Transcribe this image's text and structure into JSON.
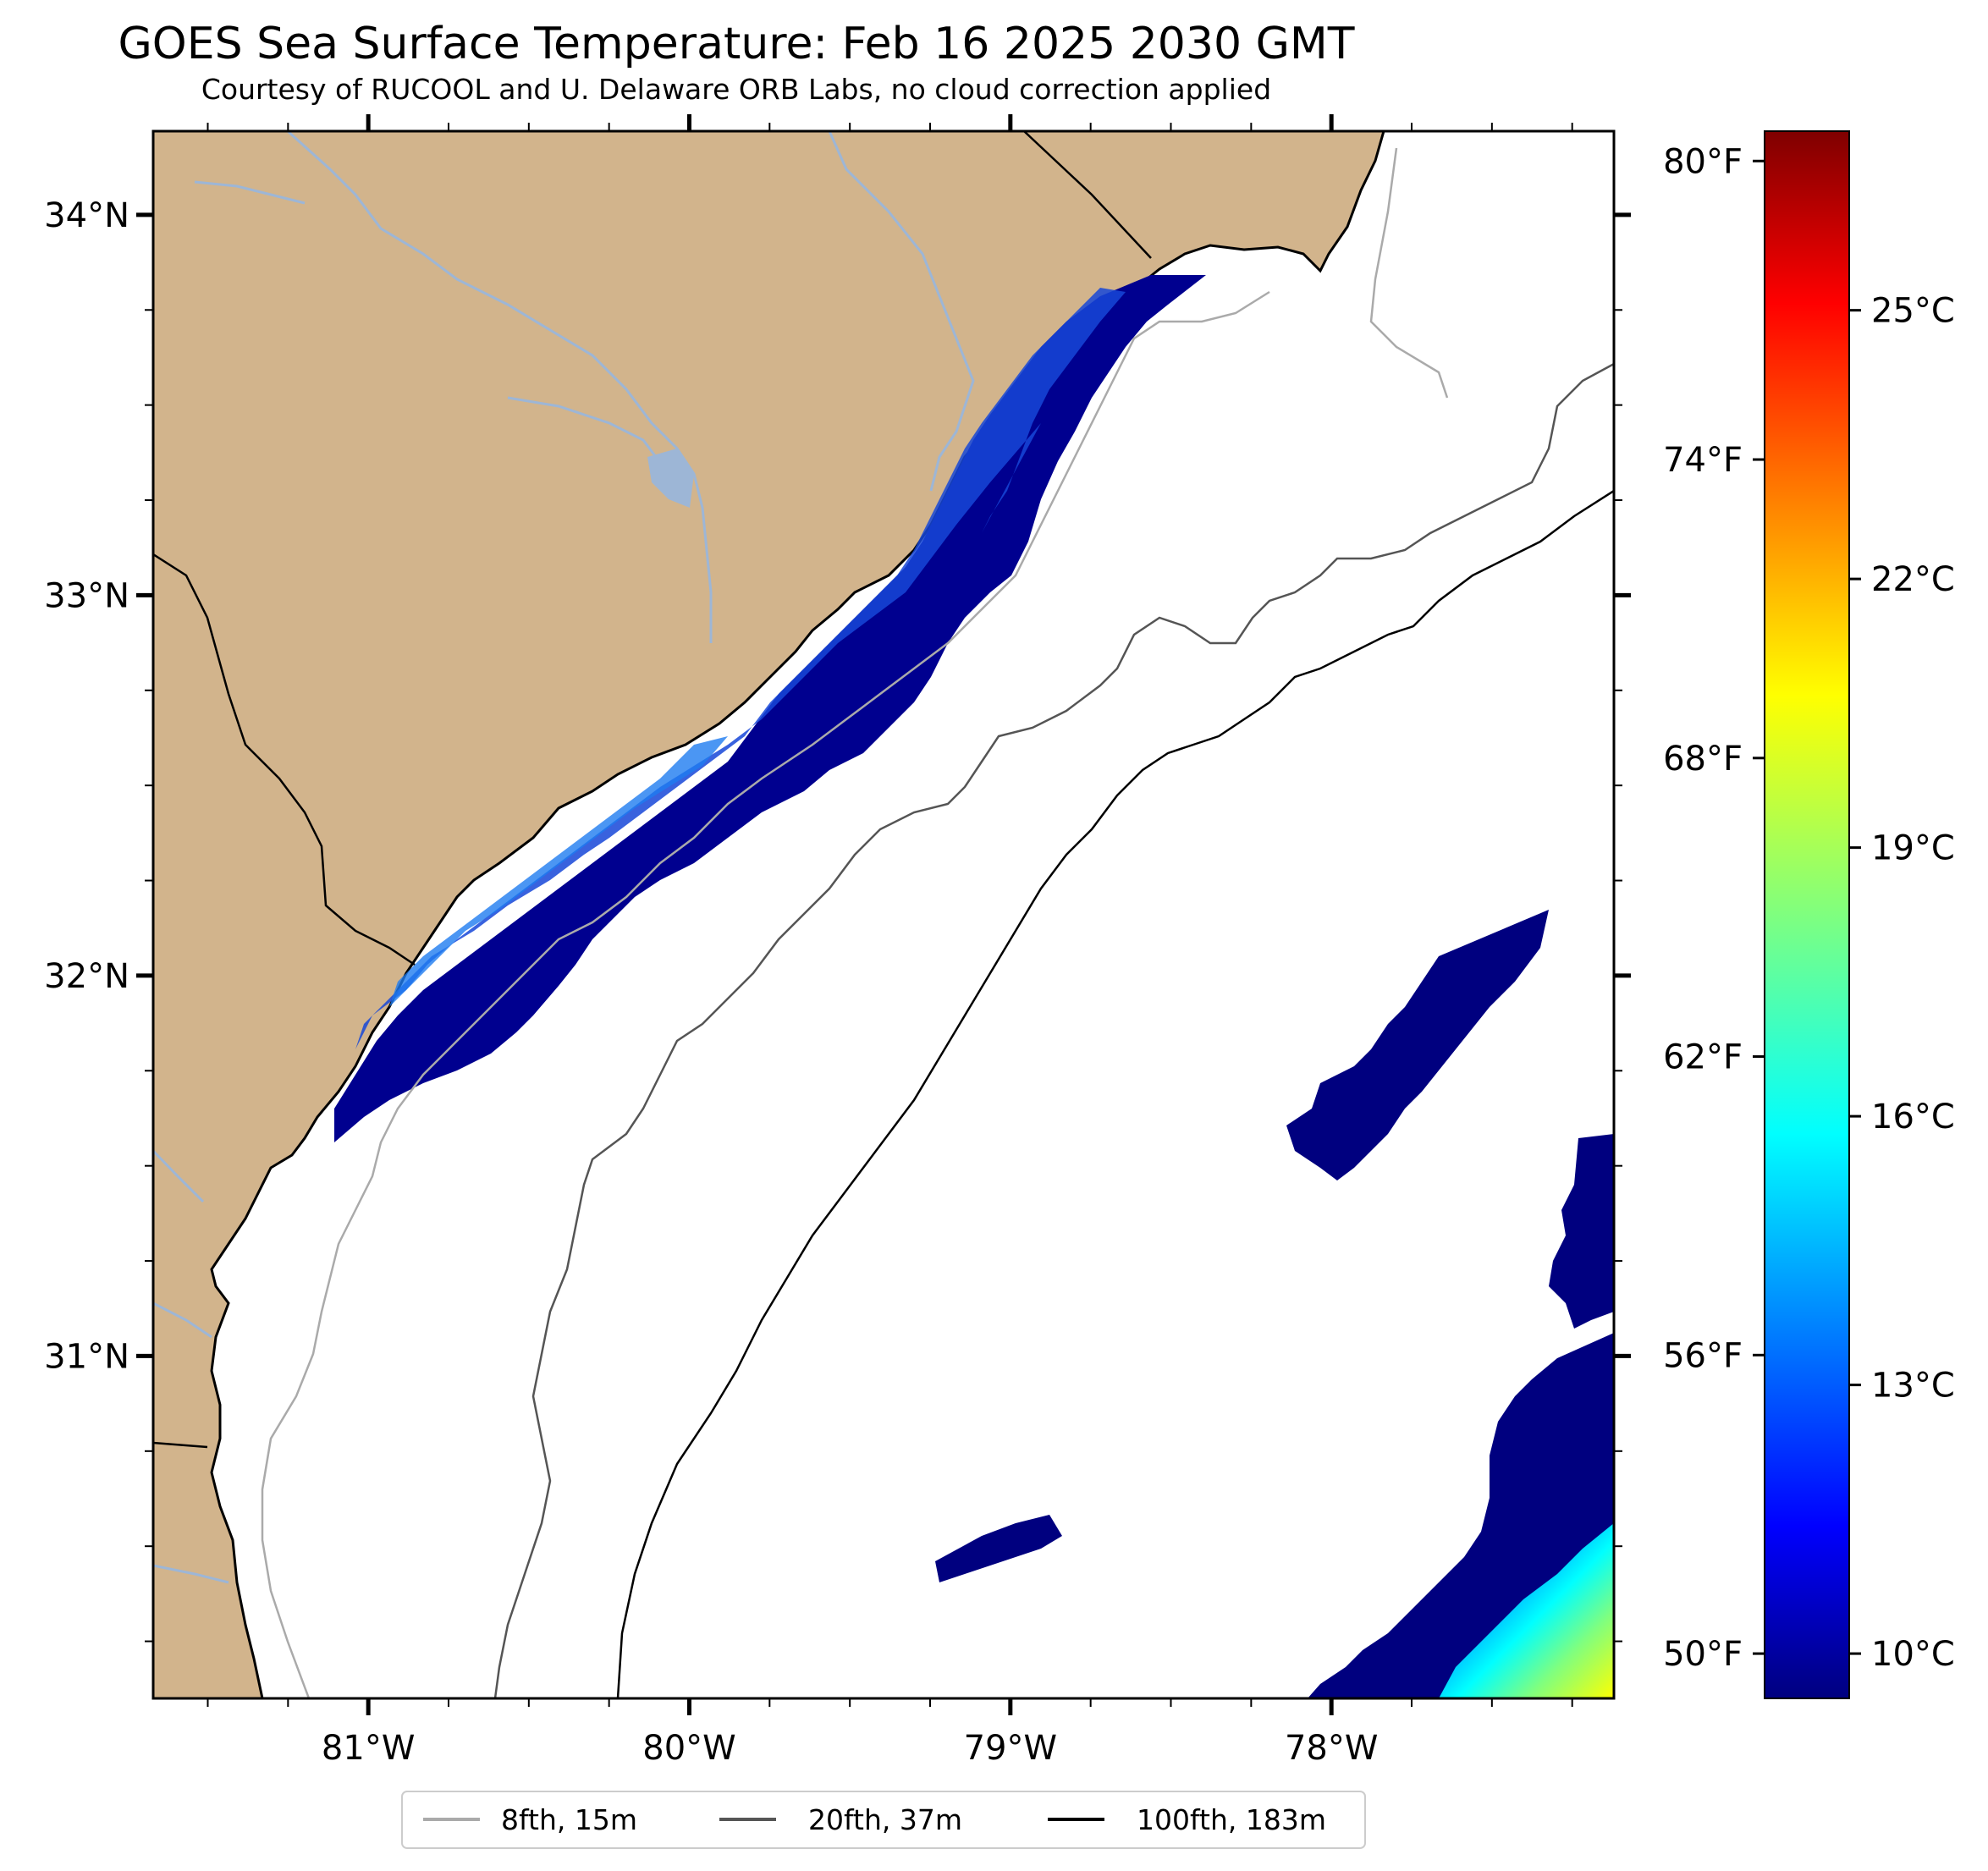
{
  "title": "GOES Sea Surface Temperature: Feb 16 2025 2030 GMT",
  "subtitle": "Courtesy of RUCOOL and U. Delaware ORB Labs, no cloud correction applied",
  "map": {
    "lon_range": [
      -81.67,
      -77.12
    ],
    "lat_range": [
      30.1,
      34.22
    ],
    "lat_ticks": [
      {
        "value": 34,
        "label": "34°N"
      },
      {
        "value": 33,
        "label": "33°N"
      },
      {
        "value": 32,
        "label": "32°N"
      },
      {
        "value": 31,
        "label": "31°N"
      }
    ],
    "lon_ticks": [
      {
        "value": -81,
        "label": "81°W"
      },
      {
        "value": -80,
        "label": "80°W"
      },
      {
        "value": -79,
        "label": "79°W"
      },
      {
        "value": -78,
        "label": "78°W"
      }
    ],
    "colors": {
      "land": "#d2b48c",
      "ocean": "#ffffff",
      "rivers": "#9db6d6",
      "coastline": "#000000"
    }
  },
  "colorbar": {
    "range_c": [
      9.5,
      27
    ],
    "celsius_ticks": [
      {
        "value": 25,
        "label": "25°C"
      },
      {
        "value": 22,
        "label": "22°C"
      },
      {
        "value": 19,
        "label": "19°C"
      },
      {
        "value": 16,
        "label": "16°C"
      },
      {
        "value": 13,
        "label": "13°C"
      },
      {
        "value": 10,
        "label": "10°C"
      }
    ],
    "fahrenheit_ticks": [
      {
        "value": 80,
        "label": "80°F"
      },
      {
        "value": 74,
        "label": "74°F"
      },
      {
        "value": 68,
        "label": "68°F"
      },
      {
        "value": 62,
        "label": "62°F"
      },
      {
        "value": 56,
        "label": "56°F"
      },
      {
        "value": 50,
        "label": "50°F"
      }
    ],
    "colormap": [
      "#00007f",
      "#0000ff",
      "#007fff",
      "#00ffff",
      "#7fff7f",
      "#ffff00",
      "#ff7f00",
      "#ff0000",
      "#7f0000"
    ]
  },
  "legend": {
    "placement": "bottom-center",
    "items": [
      {
        "label": "8fth, 15m",
        "color": "#aaaaaa"
      },
      {
        "label": "20fth, 37m",
        "color": "#555555"
      },
      {
        "label": "100fth, 183m",
        "color": "#000000"
      }
    ]
  }
}
